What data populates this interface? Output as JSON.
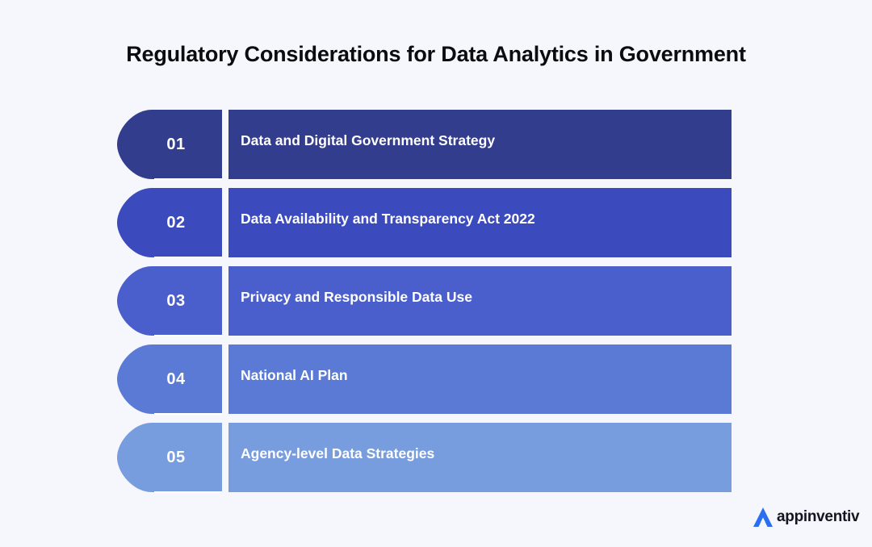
{
  "title": "Regulatory Considerations for Data Analytics in Government",
  "items": [
    {
      "number": "01",
      "label": "Data and Digital Government Strategy",
      "color": "#333d8e"
    },
    {
      "number": "02",
      "label": "Data Availability and Transparency Act 2022",
      "color": "#3b4abd"
    },
    {
      "number": "03",
      "label": "Privacy and Responsible Data Use",
      "color": "#4a5fcb"
    },
    {
      "number": "04",
      "label": "National AI Plan",
      "color": "#5a7ad6"
    },
    {
      "number": "05",
      "label": "Agency-level Data Strategies",
      "color": "#779ddf"
    }
  ],
  "logo": {
    "text": "appinventiv",
    "icon": "appinventiv-logo-icon",
    "color": "#2b6ff0"
  }
}
